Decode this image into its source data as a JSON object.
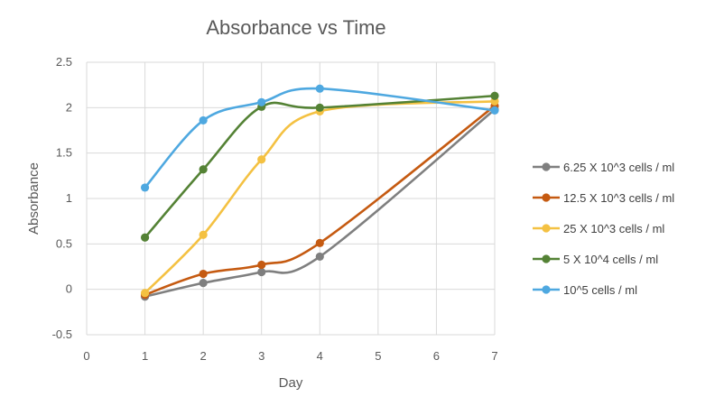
{
  "chart_data": {
    "type": "line",
    "title": "Absorbance vs Time",
    "xlabel": "Day",
    "ylabel": "Absorbance",
    "xlim": [
      0,
      7
    ],
    "ylim": [
      -0.5,
      2.5
    ],
    "xticks": [
      "0",
      "1",
      "2",
      "3",
      "4",
      "5",
      "6",
      "7"
    ],
    "yticks": [
      "-0.5",
      "0",
      "0.5",
      "1",
      "1.5",
      "2",
      "2.5"
    ],
    "grid": true,
    "smooth": true,
    "legend_position": "right",
    "x": [
      1,
      2,
      3,
      4,
      7
    ],
    "series": [
      {
        "name": "6.25 X 10^3 cells / ml",
        "color": "#7f7f7f",
        "values": [
          -0.08,
          0.07,
          0.19,
          0.36,
          1.98
        ]
      },
      {
        "name": "12.5 X 10^3 cells / ml",
        "color": "#c55a11",
        "values": [
          -0.06,
          0.17,
          0.27,
          0.51,
          2.02
        ]
      },
      {
        "name": "25 X 10^3 cells / ml",
        "color": "#f4c142",
        "values": [
          -0.04,
          0.6,
          1.43,
          1.96,
          2.07
        ]
      },
      {
        "name": "5 X 10^4 cells / ml",
        "color": "#548235",
        "values": [
          0.57,
          1.32,
          2.01,
          2.0,
          2.13
        ]
      },
      {
        "name": "10^5 cells / ml",
        "color": "#4ea8e0",
        "values": [
          1.12,
          1.86,
          2.06,
          2.21,
          1.97
        ]
      }
    ]
  }
}
